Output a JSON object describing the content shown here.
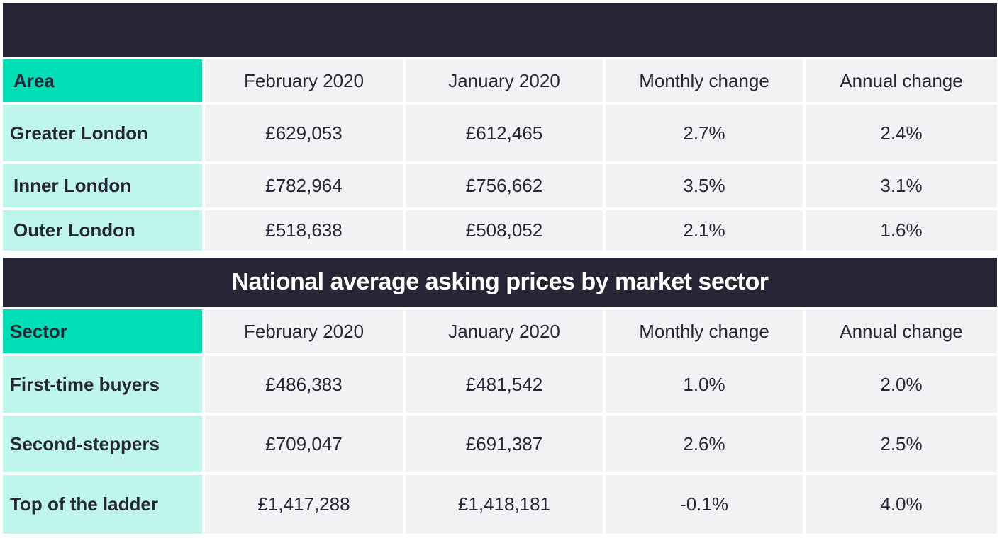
{
  "top_banner": {
    "title": ""
  },
  "london_table": {
    "headers": [
      "Area",
      "February 2020",
      "January 2020",
      "Monthly change",
      "Annual change"
    ],
    "rows": [
      {
        "label": "Greater London",
        "feb": "£629,053",
        "jan": "£612,465",
        "monthly": "2.7%",
        "annual": "2.4%"
      },
      {
        "label": "Inner London",
        "feb": "£782,964",
        "jan": "£756,662",
        "monthly": "3.5%",
        "annual": "3.1%"
      },
      {
        "label": "Outer London",
        "feb": "£518,638",
        "jan": "£508,052",
        "monthly": "2.1%",
        "annual": "1.6%"
      }
    ]
  },
  "sector_banner": {
    "title": "National average asking prices by market sector"
  },
  "sector_table": {
    "headers": [
      "Sector",
      "February 2020",
      "January 2020",
      "Monthly change",
      "Annual change"
    ],
    "rows": [
      {
        "label": "First-time buyers",
        "feb": "£486,383",
        "jan": "£481,542",
        "monthly": "1.0%",
        "annual": "2.0%"
      },
      {
        "label": "Second-steppers",
        "feb": "£709,047",
        "jan": "£691,387",
        "monthly": "2.6%",
        "annual": "2.5%"
      },
      {
        "label": "Top of the ladder",
        "feb": "£1,417,288",
        "jan": "£1,418,181",
        "monthly": "-0.1%",
        "annual": "4.0%"
      }
    ]
  },
  "colors": {
    "banner_bg": "#262637",
    "header_accent": "#00deb6",
    "label_cell": "#bff6eb",
    "data_cell": "#f2f2f4"
  }
}
